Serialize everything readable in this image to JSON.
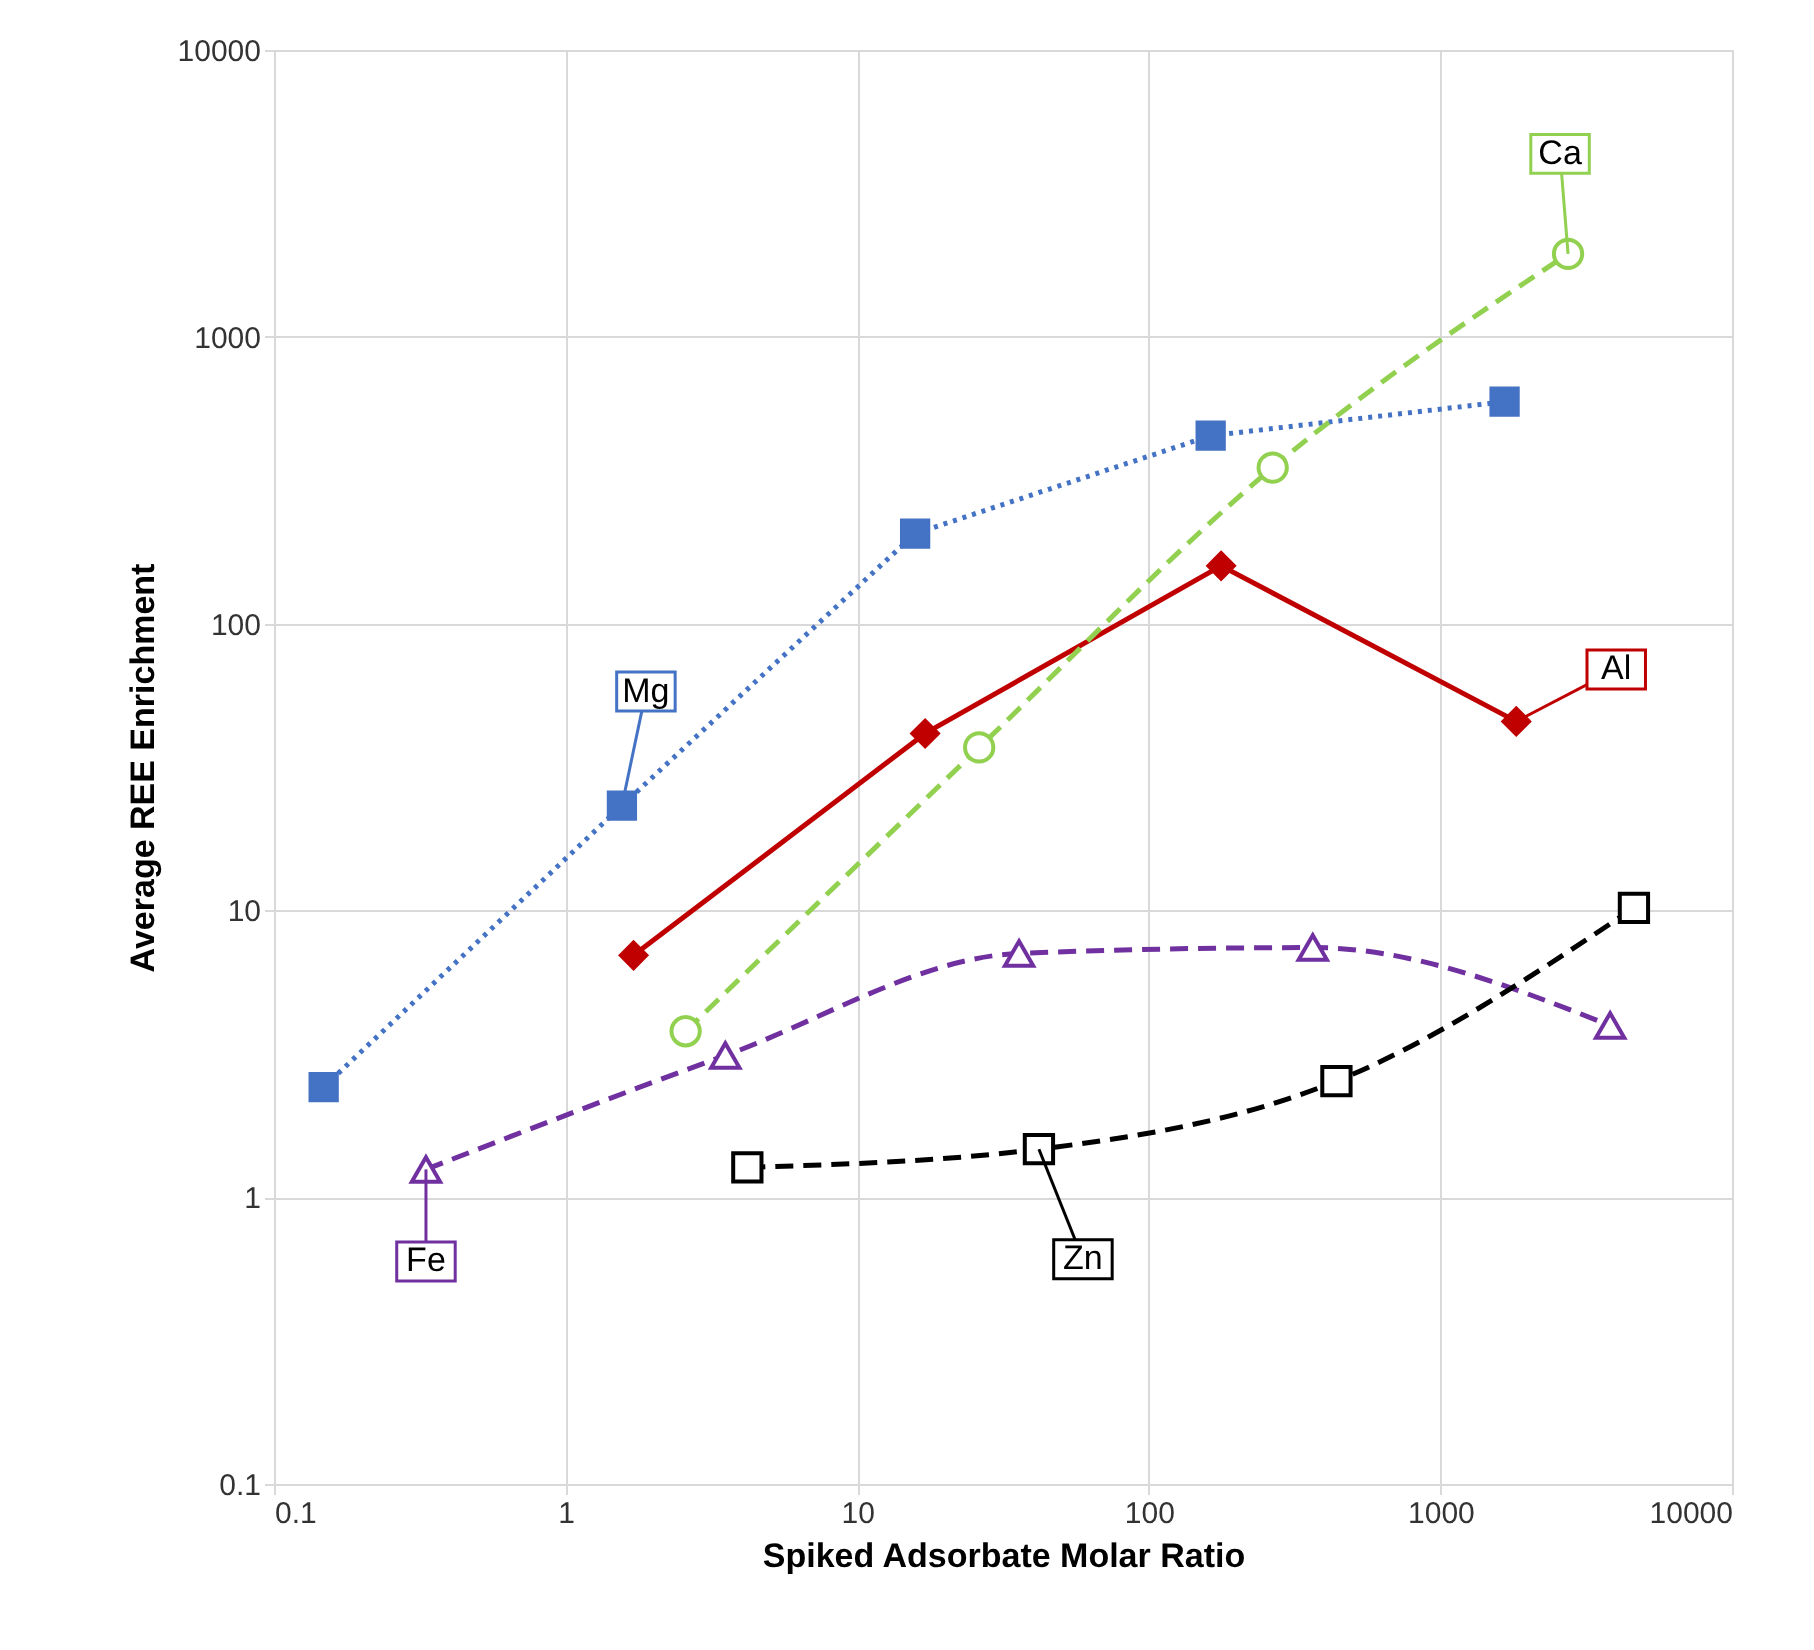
{
  "chart_data": {
    "type": "line",
    "xlabel": "Spiked Adsorbate Molar Ratio",
    "ylabel": "Average REE Enrichment",
    "log": "xy",
    "grid": true,
    "xlim": [
      0.1,
      10000
    ],
    "xticks": [
      0.1,
      1,
      10,
      100,
      1000,
      10000
    ],
    "ylim": [
      0.1,
      10000
    ],
    "yticks": [
      0.1,
      1,
      10,
      100,
      1000,
      10000
    ],
    "series": [
      {
        "color": "#4472c4",
        "marker": "square",
        "line_style": "dotted",
        "x": [
          0.148,
          1.56,
          15.8,
          163,
          1660
        ],
        "values": [
          2.42,
          23.2,
          206,
          452,
          594
        ]
      },
      {
        "color": "#c00000",
        "marker": "diamond",
        "line_style": "solid",
        "x": [
          1.71,
          17.1,
          177,
          1820
        ],
        "values": [
          6.97,
          41.4,
          159,
          45.6
        ]
      },
      {
        "color": "#92d050",
        "marker": "circle",
        "line_style": "dashed",
        "x": [
          2.58,
          26.2,
          266,
          2740
        ],
        "values": [
          3.79,
          37,
          350,
          1946
        ]
      },
      {
        "color": "#7030a0",
        "marker": "triangle",
        "line_style": "dashed",
        "x": [
          0.332,
          3.53,
          35.9,
          365,
          3820
        ],
        "values": [
          1.25,
          3.12,
          7.08,
          7.42,
          3.97
        ]
      },
      {
        "color": "#000000",
        "marker": "square",
        "line_style": "dashed",
        "x": [
          4.2,
          42,
          440,
          4610
        ],
        "values": [
          1.27,
          1.47,
          2.54,
          10.2
        ]
      }
    ],
    "annotations": [
      {
        "text": "Mg",
        "x": 1.56,
        "y": 23.2
      },
      {
        "text": "Ca",
        "x": 2740,
        "y": 1946
      },
      {
        "text": "Al",
        "x": 1820,
        "y": 45.6
      },
      {
        "text": "Fe",
        "x": 0.332,
        "y": 1.25
      },
      {
        "text": "Zn",
        "x": 42,
        "y": 1.47
      }
    ]
  }
}
